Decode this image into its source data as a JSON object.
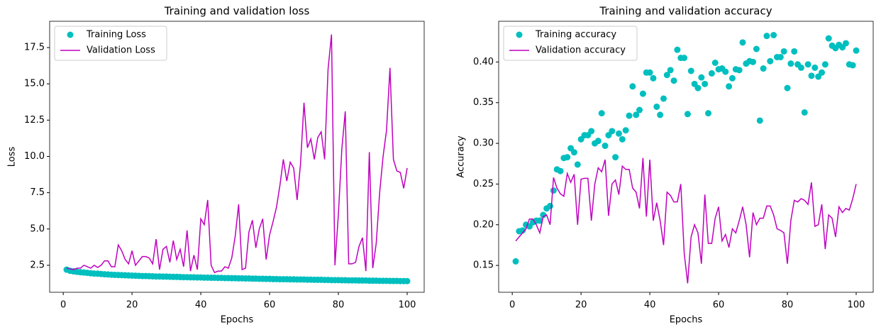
{
  "chart_data": [
    {
      "type": "line",
      "title": "Training and validation loss",
      "x_label": "Epochs",
      "y_label": "Loss",
      "x": [
        1,
        2,
        3,
        4,
        5,
        6,
        7,
        8,
        9,
        10,
        11,
        12,
        13,
        14,
        15,
        16,
        17,
        18,
        19,
        20,
        21,
        22,
        23,
        24,
        25,
        26,
        27,
        28,
        29,
        30,
        31,
        32,
        33,
        34,
        35,
        36,
        37,
        38,
        39,
        40,
        41,
        42,
        43,
        44,
        45,
        46,
        47,
        48,
        49,
        50,
        51,
        52,
        53,
        54,
        55,
        56,
        57,
        58,
        59,
        60,
        61,
        62,
        63,
        64,
        65,
        66,
        67,
        68,
        69,
        70,
        71,
        72,
        73,
        74,
        75,
        76,
        77,
        78,
        79,
        80,
        81,
        82,
        83,
        84,
        85,
        86,
        87,
        88,
        89,
        90,
        91,
        92,
        93,
        94,
        95,
        96,
        97,
        98,
        99,
        100
      ],
      "series": [
        {
          "name": "Training Loss",
          "color": "#00bfbf",
          "kind": "scatter",
          "values": [
            2.2,
            2.12,
            2.08,
            2.05,
            2.02,
            2.0,
            1.98,
            1.95,
            1.93,
            1.92,
            1.9,
            1.88,
            1.87,
            1.85,
            1.84,
            1.83,
            1.82,
            1.81,
            1.8,
            1.79,
            1.78,
            1.77,
            1.76,
            1.76,
            1.75,
            1.74,
            1.73,
            1.73,
            1.72,
            1.72,
            1.71,
            1.7,
            1.7,
            1.69,
            1.68,
            1.68,
            1.67,
            1.67,
            1.66,
            1.66,
            1.65,
            1.65,
            1.64,
            1.64,
            1.63,
            1.63,
            1.62,
            1.62,
            1.61,
            1.61,
            1.6,
            1.6,
            1.59,
            1.59,
            1.58,
            1.58,
            1.57,
            1.57,
            1.56,
            1.56,
            1.55,
            1.55,
            1.54,
            1.54,
            1.54,
            1.53,
            1.53,
            1.52,
            1.52,
            1.52,
            1.51,
            1.51,
            1.5,
            1.5,
            1.5,
            1.49,
            1.49,
            1.48,
            1.48,
            1.48,
            1.47,
            1.47,
            1.46,
            1.46,
            1.46,
            1.45,
            1.45,
            1.45,
            1.44,
            1.44,
            1.44,
            1.43,
            1.43,
            1.43,
            1.42,
            1.42,
            1.42,
            1.41,
            1.41,
            1.41
          ]
        },
        {
          "name": "Validation Loss",
          "color": "#bf00bf",
          "kind": "line",
          "values": [
            2.3,
            2.25,
            2.2,
            2.3,
            2.3,
            2.5,
            2.4,
            2.3,
            2.5,
            2.35,
            2.5,
            2.8,
            2.8,
            2.4,
            2.4,
            3.9,
            3.5,
            2.9,
            2.6,
            3.5,
            2.5,
            2.8,
            3.1,
            3.1,
            3.0,
            2.6,
            4.3,
            2.2,
            3.6,
            3.8,
            2.7,
            4.2,
            2.9,
            3.6,
            2.4,
            4.9,
            2.1,
            3.2,
            2.2,
            5.7,
            5.3,
            7.0,
            2.5,
            2.0,
            2.1,
            2.1,
            2.4,
            2.3,
            3.0,
            4.5,
            6.7,
            2.2,
            2.3,
            4.8,
            5.6,
            3.7,
            5.0,
            5.7,
            2.9,
            4.6,
            5.5,
            6.5,
            8.0,
            9.8,
            8.3,
            9.6,
            9.2,
            7.0,
            9.5,
            13.7,
            10.6,
            11.2,
            9.8,
            11.3,
            11.7,
            9.8,
            16.0,
            18.4,
            2.5,
            6.0,
            10.5,
            13.1,
            2.6,
            2.6,
            2.7,
            3.8,
            4.4,
            2.1,
            10.3,
            2.3,
            4.0,
            7.5,
            10.0,
            11.8,
            16.1,
            9.8,
            9.0,
            8.9,
            7.8,
            9.2
          ]
        }
      ],
      "xlim": [
        -3.95,
        104.95
      ],
      "xticks": [
        0,
        20,
        40,
        60,
        80,
        100
      ],
      "ylim": [
        0.64,
        19.31
      ],
      "yticks": [
        2.5,
        {
          "value": 5,
          "label": "5.0"
        },
        7.5,
        {
          "value": 10,
          "label": "10.0"
        },
        12.5,
        {
          "value": 15,
          "label": "15.0"
        },
        17.5
      ],
      "legend": "upper left"
    },
    {
      "type": "line",
      "title": "Training and validation accuracy",
      "x_label": "Epochs",
      "y_label": "Accuracy",
      "x": [
        1,
        2,
        3,
        4,
        5,
        6,
        7,
        8,
        9,
        10,
        11,
        12,
        13,
        14,
        15,
        16,
        17,
        18,
        19,
        20,
        21,
        22,
        23,
        24,
        25,
        26,
        27,
        28,
        29,
        30,
        31,
        32,
        33,
        34,
        35,
        36,
        37,
        38,
        39,
        40,
        41,
        42,
        43,
        44,
        45,
        46,
        47,
        48,
        49,
        50,
        51,
        52,
        53,
        54,
        55,
        56,
        57,
        58,
        59,
        60,
        61,
        62,
        63,
        64,
        65,
        66,
        67,
        68,
        69,
        70,
        71,
        72,
        73,
        74,
        75,
        76,
        77,
        78,
        79,
        80,
        81,
        82,
        83,
        84,
        85,
        86,
        87,
        88,
        89,
        90,
        91,
        92,
        93,
        94,
        95,
        96,
        97,
        98,
        99,
        100
      ],
      "series": [
        {
          "name": "Training accuracy",
          "color": "#00bfbf",
          "kind": "scatter",
          "values": [
            0.155,
            0.192,
            0.193,
            0.2,
            0.198,
            0.203,
            0.205,
            0.205,
            0.212,
            0.22,
            0.223,
            0.242,
            0.268,
            0.266,
            0.282,
            0.283,
            0.294,
            0.289,
            0.274,
            0.305,
            0.31,
            0.31,
            0.315,
            0.3,
            0.303,
            0.337,
            0.297,
            0.31,
            0.315,
            0.283,
            0.312,
            0.305,
            0.316,
            0.334,
            0.37,
            0.335,
            0.341,
            0.361,
            0.387,
            0.387,
            0.38,
            0.345,
            0.335,
            0.355,
            0.384,
            0.39,
            0.377,
            0.415,
            0.405,
            0.405,
            0.336,
            0.389,
            0.373,
            0.368,
            0.381,
            0.373,
            0.337,
            0.386,
            0.399,
            0.391,
            0.392,
            0.388,
            0.37,
            0.38,
            0.391,
            0.39,
            0.424,
            0.398,
            0.401,
            0.4,
            0.416,
            0.328,
            0.392,
            0.432,
            0.401,
            0.433,
            0.406,
            0.406,
            0.413,
            0.368,
            0.398,
            0.413,
            0.397,
            0.393,
            0.338,
            0.397,
            0.383,
            0.393,
            0.382,
            0.387,
            0.397,
            0.429,
            0.42,
            0.417,
            0.421,
            0.418,
            0.423,
            0.397,
            0.396,
            0.414
          ]
        },
        {
          "name": "Validation accuracy",
          "color": "#bf00bf",
          "kind": "line",
          "values": [
            0.18,
            0.185,
            0.19,
            0.195,
            0.207,
            0.207,
            0.2,
            0.19,
            0.21,
            0.212,
            0.2,
            0.258,
            0.245,
            0.238,
            0.235,
            0.263,
            0.252,
            0.262,
            0.2,
            0.256,
            0.257,
            0.257,
            0.205,
            0.25,
            0.27,
            0.265,
            0.28,
            0.211,
            0.25,
            0.255,
            0.237,
            0.272,
            0.268,
            0.268,
            0.245,
            0.24,
            0.22,
            0.282,
            0.21,
            0.28,
            0.205,
            0.227,
            0.205,
            0.175,
            0.24,
            0.236,
            0.228,
            0.228,
            0.25,
            0.165,
            0.128,
            0.185,
            0.2,
            0.19,
            0.152,
            0.237,
            0.177,
            0.177,
            0.208,
            0.222,
            0.18,
            0.188,
            0.172,
            0.195,
            0.19,
            0.205,
            0.222,
            0.2,
            0.16,
            0.215,
            0.2,
            0.208,
            0.208,
            0.223,
            0.223,
            0.212,
            0.195,
            0.193,
            0.19,
            0.152,
            0.205,
            0.23,
            0.228,
            0.232,
            0.23,
            0.225,
            0.252,
            0.198,
            0.2,
            0.225,
            0.17,
            0.212,
            0.208,
            0.185,
            0.222,
            0.215,
            0.22,
            0.218,
            0.232,
            0.25
          ]
        }
      ],
      "xlim": [
        -3.95,
        104.95
      ],
      "xticks": [
        0,
        20,
        40,
        60,
        80,
        100
      ],
      "ylim": [
        0.117,
        0.45
      ],
      "yticks": [
        0.15,
        {
          "value": 0.2,
          "label": "0.20"
        },
        0.25,
        {
          "value": 0.3,
          "label": "0.30"
        },
        0.35,
        {
          "value": 0.4,
          "label": "0.40"
        }
      ],
      "legend": "upper left"
    }
  ]
}
